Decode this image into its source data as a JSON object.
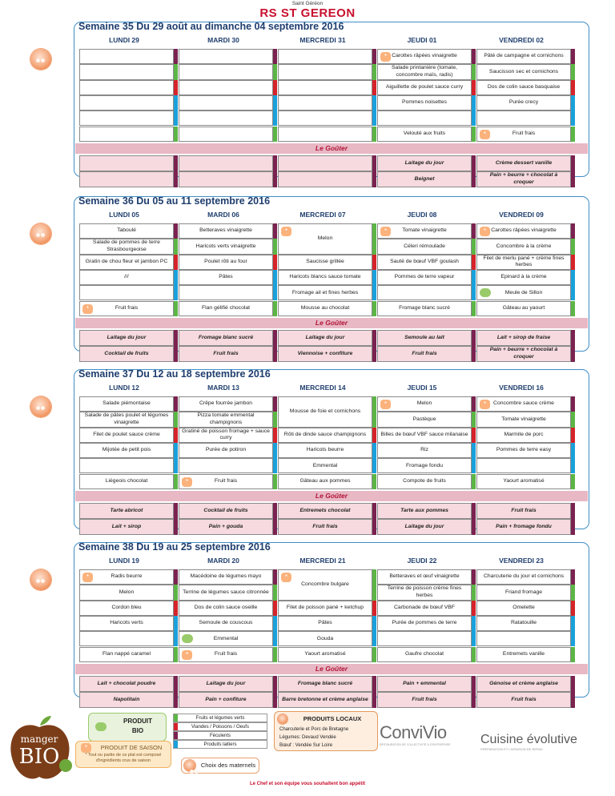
{
  "header": {
    "small": "Saint Géréon",
    "title": "RS ST GEREON",
    "gouter": "Le Goûter"
  },
  "colors": {
    "purple": "#7b2250",
    "green": "#5cb645",
    "red": "#d6232a",
    "blue": "#1aa1db",
    "pink": "#f6dadf"
  },
  "weeks": [
    {
      "title": "Semaine 35 Du 29 août au dimanche 04 septembre 2016",
      "days": [
        "LUNDI 29",
        "MARDI 30",
        "MERCREDI 31",
        "JEUDI 01",
        "VENDREDI 02"
      ],
      "rows": [
        [
          "",
          "",
          "",
          "Carottes râpées vinaigrette",
          "Pâté de campagne et cornichons"
        ],
        [
          "",
          "",
          "",
          "Salade printanière (tomate, concombre maïs, radis)",
          "Saucisson sec et cornichons"
        ],
        [
          "",
          "",
          "",
          "Aiguillette de poulet sauce curry",
          "Dos de colin sauce basquaise"
        ],
        [
          "",
          "",
          "",
          "Pommes noisettes",
          "Purée crecy"
        ],
        [
          "",
          "",
          "",
          "",
          ""
        ],
        [
          "",
          "",
          "",
          "Velouté aux fruits",
          "Fruit frais"
        ]
      ],
      "gouter": [
        [
          "",
          "",
          "",
          "Laitage du jour",
          "Crème dessert vanille"
        ],
        [
          "",
          "",
          "",
          "Beignet",
          "Pain + beurre + chocolat à croquer"
        ]
      ]
    },
    {
      "title": "Semaine 36 Du 05 au 11 septembre 2016",
      "days": [
        "LUNDI 05",
        "MARDI 06",
        "MERCREDI 07",
        "JEUDI 08",
        "VENDREDI 09"
      ],
      "rows": [
        [
          "Taboulé",
          "Betteraves vinaigrette",
          "Melon",
          "Tomate vinaigrette",
          "Carottes râpées vinaigrette"
        ],
        [
          "Salade de pommes de terre Strasbourgeoise",
          "Haricots verts vinaigrette",
          "",
          "Céleri rémoulade",
          "Concombre à la crème"
        ],
        [
          "Gratin de chou fleur et jambon PC",
          "Poulet rôti au four",
          "Saucisse grillée",
          "Sauté de bœuf VBF goulash",
          "Filet de merlu pané + crème fines herbes"
        ],
        [
          "///",
          "Pâtes",
          "Haricots blancs sauce tomate",
          "Pommes de terre vapeur",
          "Epinard à la crème"
        ],
        [
          "",
          "",
          "Fromage ail et fines herbes",
          "",
          "Meule de Sillon"
        ],
        [
          "Fruit frais",
          "Flan gélifié chocolat",
          "Mousse au chocolat",
          "Fromage blanc sucré",
          "Gâteau au yaourt"
        ]
      ],
      "gouter": [
        [
          "Laitage du jour",
          "Fromage blanc sucré",
          "Laitage du jour",
          "Semoule au lait",
          "Lait + sirop de fraise"
        ],
        [
          "Cocktail de fruits",
          "Fruit frais",
          "Viennoise + confiture",
          "Fruit frais",
          "Pain + beurre + chocolat à croquer"
        ]
      ]
    },
    {
      "title": "Semaine 37 Du 12 au 18 septembre 2016",
      "days": [
        "LUNDI 12",
        "MARDI 13",
        "MERCREDI 14",
        "JEUDI 15",
        "VENDREDI 16"
      ],
      "rows": [
        [
          "Salade piémontaise",
          "Crêpe fourrée jambon",
          "Mousse de foie et cornichons",
          "Melon",
          "Concombre sauce crème"
        ],
        [
          "Salade de pâtes poulet et légumes vinaigrette",
          "Pizza tomate emmental champignons",
          "",
          "Pastèque",
          "Tomate vinaigrette"
        ],
        [
          "Filet de poulet sauce crème",
          "Gratiné de poisson fromage + sauce curry",
          "Rôti de dinde sauce champignons",
          "Billes de bœuf VBF sauce milanaise",
          "Marmite de porc"
        ],
        [
          "Mijotée de petit pois",
          "Purée de potiron",
          "Haricots beurre",
          "Riz",
          "Pommes de terre easy"
        ],
        [
          "",
          "",
          "Emmental",
          "Fromage fondu",
          ""
        ],
        [
          "Liégeois chocolat",
          "Fruit frais",
          "Gâteau aux pommes",
          "Compote de fruits",
          "Yaourt aromatisé"
        ]
      ],
      "gouter": [
        [
          "Tarte abricot",
          "Cocktail de fruits",
          "Entremets chocolat",
          "Tarte aux pommes",
          "Fruit frais"
        ],
        [
          "Lait + sirop",
          "Pain + gouda",
          "Fruit frais",
          "Laitage du jour",
          "Pain + fromage fondu"
        ]
      ]
    },
    {
      "title": "Semaine 38 Du 19 au 25 septembre 2016",
      "days": [
        "LUNDI 19",
        "MARDI 20",
        "MERCREDI 21",
        "JEUDI 22",
        "VENDREDI 23"
      ],
      "rows": [
        [
          "Radis beurre",
          "Macédoine de légumes mayo",
          "Concombre bulgare",
          "Betteraves et œuf vinaigrette",
          "Charcuterie du jour et cornichons"
        ],
        [
          "Melon",
          "Terrine de légumes sauce citronnée",
          "",
          "Terrine de poisson crème fines herbes",
          "Friand fromage"
        ],
        [
          "Cordon bleu",
          "Dos de colin sauce oseille",
          "Filet de poisson pané + ketchup",
          "Carbonade de bœuf VBF",
          "Omelette"
        ],
        [
          "Haricots verts",
          "Semoule de couscous",
          "Pâtes",
          "Purée de pommes de terre",
          "Ratatouille"
        ],
        [
          "",
          "Emmental",
          "Gouda",
          "",
          ""
        ],
        [
          "Flan nappé caramel",
          "Fruit frais",
          "Yaourt aromatisé",
          "Gaufre chocolat",
          "Entremets vanille"
        ]
      ],
      "gouter": [
        [
          "Lait + chocolat poudre",
          "Laitage du jour",
          "Fromage blanc sucré",
          "Pain + emmental",
          "Génoise et crème anglaise"
        ],
        [
          "Napolitain",
          "Pain + confiture",
          "Barre bretonne et crème anglaise",
          "Fruit frais",
          "Fruit frais"
        ]
      ]
    }
  ],
  "footer": {
    "bio_title": "PRODUIT",
    "bio_sub": "BIO",
    "saison": "PRODUIT DE SAISON",
    "bio_note": "* Tout ou partie de ce plat est composé d'ingrédients crus de saison",
    "legend": [
      "Fruits et légumes verts",
      "Viandes / Poissons / Oeufs",
      "Féculents",
      "Produits laitiers"
    ],
    "choix": "Choix des maternels",
    "locaux_title": "PRODUITS LOCAUX",
    "locaux": [
      "Charcuterie et Porc de Bretagne",
      "Légumes: Devaud Vendée",
      "Bœuf : Vendée Sur Loire"
    ],
    "manger": "manger",
    "bio": "BIO",
    "convivio": "ConviVio",
    "convivio_sub": "RESTAURATION DE COLLECTIVITÉ & D'ENTREPRISE",
    "cuisine": "Cuisine évolutive",
    "cuisine_sub": "PRÉPARATION ET LIVRAISON DE REPAS",
    "chef": "Le Chef et son équipe vous souhaitent bon appétit"
  }
}
